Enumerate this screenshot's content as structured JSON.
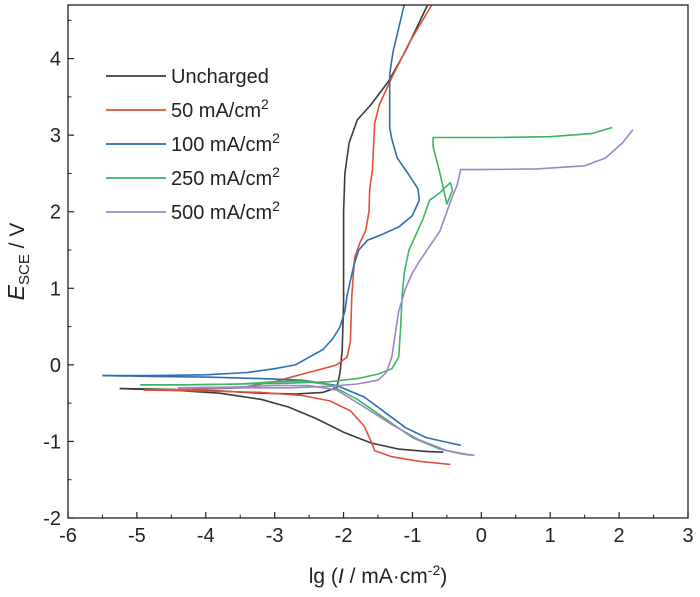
{
  "chart_data": {
    "type": "line",
    "xlabel": {
      "prefix": "lg (",
      "italic": "I",
      "middle": " / mA·cm",
      "sup": "-2",
      "suffix": ")"
    },
    "ylabel": {
      "main": "E",
      "sub": "SCE",
      "suffix": " / V"
    },
    "xlim": [
      -6,
      3
    ],
    "ylim": [
      -2,
      4.7
    ],
    "xticks": [
      "-6",
      "-5",
      "-4",
      "-3",
      "-2",
      "-1",
      "0",
      "1",
      "2",
      "3"
    ],
    "yticks": [
      "-2",
      "-1",
      "0",
      "1",
      "2",
      "3",
      "4"
    ],
    "legend_position": "top-left",
    "legend": [
      {
        "base": "Uncharged",
        "sup": ""
      },
      {
        "base": "50 mA/cm",
        "sup": "2"
      },
      {
        "base": "100 mA/cm",
        "sup": "2"
      },
      {
        "base": "250 mA/cm",
        "sup": "2"
      },
      {
        "base": "500 mA/cm",
        "sup": "2"
      }
    ],
    "series": [
      {
        "name": "Uncharged",
        "color": "#3b3b3b",
        "points": [
          [
            -5.25,
            -0.31
          ],
          [
            -4.5,
            -0.32
          ],
          [
            -3.8,
            -0.34
          ],
          [
            -3.2,
            -0.37
          ],
          [
            -2.7,
            -0.38
          ],
          [
            -2.3,
            -0.36
          ],
          [
            -2.1,
            -0.3
          ],
          [
            -2.05,
            -0.1
          ],
          [
            -2.02,
            0.2
          ],
          [
            -2.0,
            0.8
          ],
          [
            -2.0,
            1.5
          ],
          [
            -2.0,
            2.0
          ],
          [
            -1.98,
            2.5
          ],
          [
            -1.92,
            2.9
          ],
          [
            -1.8,
            3.2
          ],
          [
            -1.6,
            3.4
          ],
          [
            -1.35,
            3.7
          ],
          [
            -1.1,
            4.1
          ],
          [
            -0.78,
            4.7
          ]
        ]
      },
      {
        "name": "Uncharged",
        "color": "#3b3b3b",
        "points": [
          [
            -5.25,
            -0.31
          ],
          [
            -4.5,
            -0.33
          ],
          [
            -3.8,
            -0.37
          ],
          [
            -3.2,
            -0.45
          ],
          [
            -2.8,
            -0.55
          ],
          [
            -2.4,
            -0.7
          ],
          [
            -2.0,
            -0.88
          ],
          [
            -1.6,
            -1.02
          ],
          [
            -1.2,
            -1.1
          ],
          [
            -0.8,
            -1.13
          ],
          [
            -0.55,
            -1.14
          ]
        ]
      },
      {
        "name": "50 mA/cm2",
        "color": "#e0503a",
        "points": [
          [
            -4.9,
            -0.33
          ],
          [
            -4.2,
            -0.32
          ],
          [
            -3.5,
            -0.3
          ],
          [
            -3.0,
            -0.22
          ],
          [
            -2.6,
            -0.12
          ],
          [
            -2.3,
            -0.05
          ],
          [
            -2.1,
            0.0
          ],
          [
            -1.95,
            0.1
          ],
          [
            -1.9,
            0.3
          ],
          [
            -1.88,
            0.9
          ],
          [
            -1.84,
            1.4
          ],
          [
            -1.76,
            1.6
          ],
          [
            -1.68,
            1.75
          ],
          [
            -1.63,
            2.0
          ],
          [
            -1.62,
            2.3
          ],
          [
            -1.58,
            2.55
          ],
          [
            -1.56,
            2.95
          ],
          [
            -1.55,
            3.15
          ],
          [
            -1.48,
            3.4
          ],
          [
            -1.3,
            3.75
          ],
          [
            -1.05,
            4.2
          ],
          [
            -0.72,
            4.7
          ]
        ]
      },
      {
        "name": "50 mA/cm2",
        "color": "#e0503a",
        "points": [
          [
            -4.9,
            -0.33
          ],
          [
            -4.0,
            -0.34
          ],
          [
            -3.2,
            -0.36
          ],
          [
            -2.6,
            -0.4
          ],
          [
            -2.2,
            -0.47
          ],
          [
            -1.9,
            -0.6
          ],
          [
            -1.7,
            -0.8
          ],
          [
            -1.6,
            -1.0
          ],
          [
            -1.55,
            -1.12
          ],
          [
            -1.3,
            -1.2
          ],
          [
            -0.9,
            -1.26
          ],
          [
            -0.45,
            -1.3
          ]
        ]
      },
      {
        "name": "100 mA/cm2",
        "color": "#2f6cb3",
        "points": [
          [
            -5.5,
            -0.14
          ],
          [
            -4.8,
            -0.14
          ],
          [
            -4.0,
            -0.13
          ],
          [
            -3.4,
            -0.1
          ],
          [
            -3.0,
            -0.05
          ],
          [
            -2.7,
            0.0
          ],
          [
            -2.5,
            0.1
          ],
          [
            -2.3,
            0.2
          ],
          [
            -2.15,
            0.35
          ],
          [
            -2.05,
            0.5
          ],
          [
            -1.98,
            0.7
          ],
          [
            -1.95,
            0.9
          ],
          [
            -1.9,
            1.1
          ],
          [
            -1.85,
            1.3
          ],
          [
            -1.78,
            1.5
          ],
          [
            -1.65,
            1.63
          ],
          [
            -1.45,
            1.7
          ],
          [
            -1.2,
            1.8
          ],
          [
            -1.0,
            1.95
          ],
          [
            -0.9,
            2.15
          ],
          [
            -0.92,
            2.3
          ],
          [
            -1.05,
            2.48
          ],
          [
            -1.22,
            2.7
          ],
          [
            -1.3,
            2.95
          ],
          [
            -1.33,
            3.1
          ],
          [
            -1.33,
            3.4
          ],
          [
            -1.33,
            3.8
          ],
          [
            -1.28,
            4.1
          ],
          [
            -1.2,
            4.4
          ],
          [
            -1.12,
            4.7
          ]
        ]
      },
      {
        "name": "100 mA/cm2",
        "color": "#2f6cb3",
        "points": [
          [
            -5.5,
            -0.14
          ],
          [
            -4.8,
            -0.15
          ],
          [
            -4.0,
            -0.16
          ],
          [
            -3.2,
            -0.18
          ],
          [
            -2.6,
            -0.2
          ],
          [
            -2.1,
            -0.27
          ],
          [
            -1.7,
            -0.42
          ],
          [
            -1.4,
            -0.62
          ],
          [
            -1.1,
            -0.82
          ],
          [
            -0.8,
            -0.95
          ],
          [
            -0.45,
            -1.02
          ],
          [
            -0.3,
            -1.05
          ]
        ]
      },
      {
        "name": "250 mA/cm2",
        "color": "#3cb565",
        "points": [
          [
            -4.95,
            -0.26
          ],
          [
            -4.3,
            -0.26
          ],
          [
            -3.5,
            -0.25
          ],
          [
            -2.8,
            -0.24
          ],
          [
            -2.2,
            -0.22
          ],
          [
            -1.8,
            -0.18
          ],
          [
            -1.5,
            -0.12
          ],
          [
            -1.3,
            -0.05
          ],
          [
            -1.2,
            0.1
          ],
          [
            -1.17,
            0.5
          ],
          [
            -1.15,
            0.9
          ],
          [
            -1.12,
            1.2
          ],
          [
            -1.05,
            1.5
          ],
          [
            -0.95,
            1.7
          ],
          [
            -0.85,
            1.9
          ],
          [
            -0.75,
            2.15
          ],
          [
            -0.6,
            2.25
          ],
          [
            -0.45,
            2.38
          ],
          [
            -0.42,
            2.28
          ],
          [
            -0.5,
            2.1
          ],
          [
            -0.6,
            2.5
          ],
          [
            -0.7,
            2.85
          ],
          [
            -0.7,
            2.97
          ],
          [
            0.2,
            2.97
          ],
          [
            1.0,
            2.98
          ],
          [
            1.6,
            3.02
          ],
          [
            1.9,
            3.1
          ]
        ]
      },
      {
        "name": "250 mA/cm2",
        "color": "#3cb565",
        "points": [
          [
            -4.95,
            -0.26
          ],
          [
            -4.2,
            -0.26
          ],
          [
            -3.5,
            -0.25
          ],
          [
            -3.0,
            -0.22
          ],
          [
            -2.6,
            -0.21
          ],
          [
            -2.2,
            -0.26
          ],
          [
            -1.8,
            -0.45
          ],
          [
            -1.4,
            -0.7
          ],
          [
            -1.0,
            -0.95
          ],
          [
            -0.6,
            -1.1
          ],
          [
            -0.3,
            -1.16
          ],
          [
            -0.15,
            -1.18
          ]
        ]
      },
      {
        "name": "500 mA/cm2",
        "color": "#9b86c6",
        "points": [
          [
            -4.4,
            -0.3
          ],
          [
            -3.6,
            -0.3
          ],
          [
            -2.8,
            -0.3
          ],
          [
            -2.2,
            -0.28
          ],
          [
            -1.8,
            -0.25
          ],
          [
            -1.5,
            -0.2
          ],
          [
            -1.38,
            -0.1
          ],
          [
            -1.3,
            0.1
          ],
          [
            -1.25,
            0.4
          ],
          [
            -1.2,
            0.7
          ],
          [
            -1.1,
            1.0
          ],
          [
            -1.0,
            1.2
          ],
          [
            -0.9,
            1.35
          ],
          [
            -0.75,
            1.55
          ],
          [
            -0.6,
            1.75
          ],
          [
            -0.5,
            2.0
          ],
          [
            -0.42,
            2.2
          ],
          [
            -0.35,
            2.35
          ],
          [
            -0.3,
            2.55
          ],
          [
            0.0,
            2.55
          ],
          [
            0.8,
            2.56
          ],
          [
            1.5,
            2.6
          ],
          [
            1.8,
            2.7
          ],
          [
            2.05,
            2.9
          ],
          [
            2.2,
            3.07
          ]
        ]
      },
      {
        "name": "500 mA/cm2",
        "color": "#9b86c6",
        "points": [
          [
            -4.4,
            -0.3
          ],
          [
            -3.6,
            -0.29
          ],
          [
            -3.0,
            -0.27
          ],
          [
            -2.5,
            -0.27
          ],
          [
            -2.1,
            -0.33
          ],
          [
            -1.7,
            -0.55
          ],
          [
            -1.3,
            -0.78
          ],
          [
            -0.9,
            -0.98
          ],
          [
            -0.5,
            -1.12
          ],
          [
            -0.2,
            -1.17
          ],
          [
            -0.1,
            -1.18
          ]
        ]
      }
    ]
  }
}
